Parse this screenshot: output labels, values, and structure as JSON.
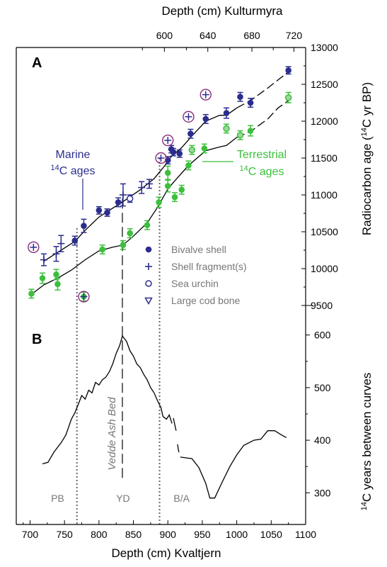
{
  "chart_data": {
    "type": "scatter",
    "panels": [
      {
        "label": "A",
        "ylabel_main": "Radiocarbon age (",
        "ylabel_sup": "14",
        "ylabel_rest": "C yr BP)",
        "ylim": [
          9500,
          13000
        ],
        "yticks": [
          "9500",
          "10000",
          "10500",
          "11000",
          "11500",
          "12000",
          "12500",
          "13000"
        ],
        "series": [
          {
            "name": "Marine 14C ages",
            "color": "#2b2d8e",
            "points": [
              {
                "x": 720,
                "y": 10120,
                "e": 80,
                "m": "plus"
              },
              {
                "x": 738,
                "y": 10200,
                "e": 100,
                "m": "plus"
              },
              {
                "x": 745,
                "y": 10340,
                "e": 110,
                "m": "plus"
              },
              {
                "x": 765,
                "y": 10380,
                "e": 60,
                "m": "dot"
              },
              {
                "x": 778,
                "y": 10580,
                "e": 90,
                "m": "dot"
              },
              {
                "x": 800,
                "y": 10790,
                "e": 50,
                "m": "dot"
              },
              {
                "x": 812,
                "y": 10760,
                "e": 50,
                "m": "dot"
              },
              {
                "x": 828,
                "y": 10900,
                "e": 60,
                "m": "dot"
              },
              {
                "x": 835,
                "y": 11000,
                "e": 150,
                "m": "plus"
              },
              {
                "x": 845,
                "y": 10950,
                "e": 50,
                "m": "ring"
              },
              {
                "x": 862,
                "y": 11100,
                "e": 80,
                "m": "plus"
              },
              {
                "x": 873,
                "y": 11150,
                "e": 60,
                "m": "plus"
              },
              {
                "x": 900,
                "y": 11470,
                "e": 50,
                "m": "dot"
              },
              {
                "x": 905,
                "y": 11620,
                "e": 50,
                "m": "dot"
              },
              {
                "x": 908,
                "y": 11580,
                "e": 50,
                "m": "dot"
              },
              {
                "x": 917,
                "y": 11560,
                "e": 50,
                "m": "dot"
              },
              {
                "x": 933,
                "y": 11830,
                "e": 60,
                "m": "dot"
              },
              {
                "x": 955,
                "y": 12030,
                "e": 60,
                "m": "dot"
              },
              {
                "x": 985,
                "y": 12110,
                "e": 70,
                "m": "dot"
              },
              {
                "x": 1005,
                "y": 12330,
                "e": 60,
                "m": "dot"
              },
              {
                "x": 1020,
                "y": 12250,
                "e": 60,
                "m": "dot"
              },
              {
                "x": 1075,
                "y": 12690,
                "e": 50,
                "m": "dot"
              }
            ]
          },
          {
            "name": "Terrestrial 14C ages",
            "color": "#3dbf3d",
            "points": [
              {
                "x": 702,
                "y": 9660,
                "e": 60,
                "m": "dot"
              },
              {
                "x": 718,
                "y": 9870,
                "e": 70,
                "m": "dot"
              },
              {
                "x": 738,
                "y": 9920,
                "e": 70,
                "m": "dot"
              },
              {
                "x": 740,
                "y": 9790,
                "e": 80,
                "m": "dot"
              },
              {
                "x": 778,
                "y": 9620,
                "e": 60,
                "m": "dot"
              },
              {
                "x": 805,
                "y": 10260,
                "e": 60,
                "m": "dot"
              },
              {
                "x": 835,
                "y": 10320,
                "e": 60,
                "m": "dot"
              },
              {
                "x": 845,
                "y": 10480,
                "e": 60,
                "m": "dot"
              },
              {
                "x": 870,
                "y": 10590,
                "e": 60,
                "m": "dot"
              },
              {
                "x": 887,
                "y": 10900,
                "e": 70,
                "m": "dot"
              },
              {
                "x": 900,
                "y": 11120,
                "e": 80,
                "m": "dot"
              },
              {
                "x": 900,
                "y": 11300,
                "e": 90,
                "m": "dot"
              },
              {
                "x": 910,
                "y": 10970,
                "e": 60,
                "m": "dot"
              },
              {
                "x": 920,
                "y": 11070,
                "e": 60,
                "m": "dot"
              },
              {
                "x": 930,
                "y": 11400,
                "e": 60,
                "m": "dot"
              },
              {
                "x": 935,
                "y": 11610,
                "e": 60,
                "m": "ring"
              },
              {
                "x": 953,
                "y": 11630,
                "e": 60,
                "m": "dot"
              },
              {
                "x": 985,
                "y": 11900,
                "e": 60,
                "m": "ring"
              },
              {
                "x": 1005,
                "y": 11810,
                "e": 60,
                "m": "ring"
              },
              {
                "x": 1020,
                "y": 11870,
                "e": 70,
                "m": "dot"
              },
              {
                "x": 1075,
                "y": 12320,
                "e": 70,
                "m": "ring"
              }
            ]
          }
        ],
        "outliers": [
          {
            "x": 705,
            "y": 10290
          },
          {
            "x": 778,
            "y": 9620
          },
          {
            "x": 890,
            "y": 11500
          },
          {
            "x": 900,
            "y": 11740
          },
          {
            "x": 930,
            "y": 12060
          },
          {
            "x": 955,
            "y": 12360
          }
        ],
        "marine_curve": [
          [
            720,
            10100
          ],
          [
            735,
            10190
          ],
          [
            750,
            10280
          ],
          [
            765,
            10370
          ],
          [
            780,
            10520
          ],
          [
            800,
            10700
          ],
          [
            820,
            10820
          ],
          [
            840,
            10940
          ],
          [
            860,
            11070
          ],
          [
            880,
            11220
          ],
          [
            895,
            11390
          ],
          [
            905,
            11520
          ],
          [
            920,
            11640
          ],
          [
            935,
            11800
          ],
          [
            955,
            12000
          ],
          [
            975,
            12080
          ],
          [
            985,
            12080
          ],
          [
            1000,
            12180
          ],
          [
            1020,
            12280
          ],
          [
            1045,
            12450
          ],
          [
            1060,
            12560
          ],
          [
            1075,
            12670
          ]
        ],
        "marine_curve_dashed_from": 1000,
        "terr_curve": [
          [
            702,
            9650
          ],
          [
            720,
            9780
          ],
          [
            740,
            9870
          ],
          [
            760,
            9980
          ],
          [
            780,
            10120
          ],
          [
            800,
            10240
          ],
          [
            820,
            10290
          ],
          [
            835,
            10320
          ],
          [
            850,
            10440
          ],
          [
            870,
            10620
          ],
          [
            885,
            10830
          ],
          [
            900,
            11080
          ],
          [
            910,
            11190
          ],
          [
            930,
            11400
          ],
          [
            955,
            11600
          ],
          [
            975,
            11650
          ],
          [
            985,
            11670
          ],
          [
            1000,
            11780
          ],
          [
            1020,
            11860
          ],
          [
            1045,
            12030
          ],
          [
            1060,
            12180
          ],
          [
            1075,
            12280
          ]
        ],
        "terr_curve_dashed_from": 1000,
        "legend": [
          {
            "marker": "dot",
            "label": "Bivalve shell"
          },
          {
            "marker": "plus",
            "label": "Shell fragment(s)"
          },
          {
            "marker": "ring",
            "label": "Sea urchin"
          },
          {
            "marker": "tri",
            "label": "Large cod bone"
          }
        ],
        "marine_label_line1": "Marine",
        "marine_label_sup": "14",
        "marine_label_line2": "C ages",
        "terr_label_line1": "Terrestrial",
        "terr_label_sup": "14",
        "terr_label_line2": "C ages"
      },
      {
        "label": "B",
        "ylabel_sup": "14",
        "ylabel_rest": "C  years between curves",
        "ylim": [
          260,
          640
        ],
        "yticks": [
          "300",
          "400",
          "500",
          "600"
        ],
        "line_segments": [
          [
            [
              718,
              355
            ],
            [
              726,
              358
            ],
            [
              735,
              378
            ],
            [
              745,
              395
            ],
            [
              752,
              410
            ],
            [
              760,
              440
            ],
            [
              765,
              452
            ],
            [
              770,
              468
            ],
            [
              775,
              485
            ],
            [
              780,
              478
            ],
            [
              785,
              495
            ],
            [
              790,
              490
            ],
            [
              795,
              510
            ],
            [
              800,
              505
            ],
            [
              805,
              515
            ],
            [
              810,
              520
            ],
            [
              815,
              530
            ],
            [
              820,
              545
            ],
            [
              825,
              565
            ],
            [
              830,
              580
            ],
            [
              834,
              598
            ],
            [
              840,
              588
            ],
            [
              845,
              570
            ],
            [
              850,
              560
            ],
            [
              855,
              545
            ],
            [
              860,
              538
            ],
            [
              865,
              525
            ],
            [
              870,
              515
            ],
            [
              875,
              500
            ],
            [
              880,
              490
            ],
            [
              885,
              475
            ],
            [
              890,
              462
            ],
            [
              893,
              445
            ],
            [
              898,
              440
            ],
            [
              902,
              448
            ],
            [
              906,
              432
            ]
          ],
          [
            [
              908,
              442
            ],
            [
              912,
              418
            ]
          ],
          [
            [
              914,
              392
            ],
            [
              916,
              377
            ]
          ],
          [
            [
              918,
              368
            ],
            [
              935,
              365
            ],
            [
              945,
              348
            ],
            [
              955,
              318
            ],
            [
              961,
              290
            ],
            [
              968,
              290
            ],
            [
              978,
              318
            ],
            [
              990,
              350
            ],
            [
              1000,
              372
            ],
            [
              1010,
              390
            ],
            [
              1025,
              400
            ],
            [
              1035,
              402
            ],
            [
              1045,
              418
            ],
            [
              1055,
              418
            ],
            [
              1065,
              410
            ],
            [
              1072,
              405
            ]
          ]
        ],
        "vedde_label": "Vedde Ash Bed"
      }
    ],
    "xlabel": "Depth (cm) Kvaltjern",
    "xlim": [
      680,
      1100
    ],
    "xticks": [
      "700",
      "750",
      "800",
      "850",
      "900",
      "950",
      "1000",
      "1050",
      "1100"
    ],
    "top_xlabel": "Depth (cm) Kulturmyra",
    "top_xticks": [
      {
        "x": 895,
        "label": "600"
      },
      {
        "x": 958,
        "label": "640"
      },
      {
        "x": 1022,
        "label": "680"
      },
      {
        "x": 1083,
        "label": "720"
      }
    ],
    "top_minor_ticks": [
      863,
      927,
      990,
      1053
    ],
    "zone_lines": [
      {
        "x": 768,
        "style": "dotted"
      },
      {
        "x": 834,
        "style": "dashed"
      },
      {
        "x": 888,
        "style": "dotted"
      }
    ],
    "zones": [
      {
        "x": 740,
        "label": "PB"
      },
      {
        "x": 835,
        "label": "YD"
      },
      {
        "x": 920,
        "label": "B/A"
      }
    ]
  }
}
